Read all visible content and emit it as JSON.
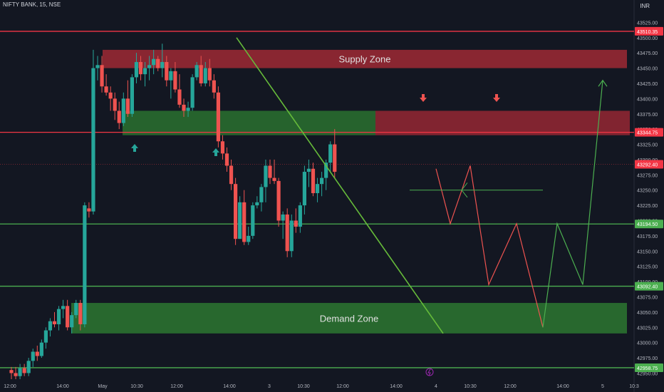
{
  "header": {
    "symbol": "NIFTY BANK, 15, NSE",
    "currency": "INR"
  },
  "colors": {
    "background": "#131722",
    "bull": "#26a69a",
    "bear": "#ef5350",
    "supply": "#a72a36",
    "demand": "#2e7d32",
    "line_green": "#4caf50",
    "line_red": "#f23645",
    "trend": "#66bb3a",
    "text": "#b2b5be"
  },
  "chart_data": {
    "type": "candlestick",
    "title": "NIFTY BANK, 15, NSE",
    "ylim": [
      42940,
      43550
    ],
    "y_ticks": [
      43525,
      43500,
      43475,
      43450,
      43425,
      43400,
      43375,
      43350,
      43325,
      43300,
      43275,
      43250,
      43225,
      43200,
      43175,
      43150,
      43125,
      43100,
      43075,
      43050,
      43025,
      43000,
      42975,
      42950
    ],
    "x_tick_labels": [
      "12:00",
      "14:00",
      "May",
      "10:30",
      "12:00",
      "14:00",
      "3",
      "10:30",
      "12:00",
      "14:00",
      "4",
      "10:30",
      "12:00",
      "14:00",
      "5",
      "10:3"
    ],
    "price_labels": [
      {
        "value": 43510.35,
        "label": "43510.35",
        "color": "#f23645"
      },
      {
        "value": 43344.75,
        "label": "43344.75",
        "color": "#f23645"
      },
      {
        "value": 43292.4,
        "label": "43292.40",
        "color": "#f23645"
      },
      {
        "value": 43194.5,
        "label": "43194.50",
        "color": "#4caf50"
      },
      {
        "value": 43092.4,
        "label": "43092.40",
        "color": "#4caf50"
      },
      {
        "value": 42958.75,
        "label": "42958.75",
        "color": "#4caf50"
      }
    ],
    "zones": [
      {
        "label": "Supply Zone",
        "y_top": 43480,
        "y_bottom": 43450
      },
      {
        "label": "Demand Zone",
        "y_top": 43065,
        "y_bottom": 43015
      }
    ],
    "candles": [
      [
        42955,
        42960,
        42940,
        42950
      ],
      [
        42950,
        42960,
        42940,
        42945
      ],
      [
        42945,
        42965,
        42940,
        42958
      ],
      [
        42958,
        42965,
        42945,
        42950
      ],
      [
        42950,
        42975,
        42945,
        42970
      ],
      [
        42970,
        42990,
        42960,
        42985
      ],
      [
        42985,
        42995,
        42970,
        42978
      ],
      [
        42978,
        43005,
        42975,
        43000
      ],
      [
        43000,
        43025,
        42990,
        43020
      ],
      [
        43020,
        43040,
        43010,
        43035
      ],
      [
        43035,
        43050,
        43025,
        43030
      ],
      [
        43030,
        43060,
        43020,
        43055
      ],
      [
        43055,
        43070,
        43040,
        43060
      ],
      [
        43060,
        43070,
        43020,
        43025
      ],
      [
        43025,
        43050,
        43015,
        43045
      ],
      [
        43045,
        43070,
        43040,
        43065
      ],
      [
        43065,
        43070,
        43020,
        43030
      ],
      [
        43030,
        43230,
        43025,
        43225
      ],
      [
        43220,
        43230,
        43205,
        43215
      ],
      [
        43215,
        43480,
        43210,
        43450
      ],
      [
        43450,
        43470,
        43430,
        43455
      ],
      [
        43455,
        43470,
        43410,
        43420
      ],
      [
        43420,
        43440,
        43405,
        43410
      ],
      [
        43410,
        43420,
        43380,
        43400
      ],
      [
        43400,
        43410,
        43365,
        43380
      ],
      [
        43380,
        43395,
        43350,
        43360
      ],
      [
        43360,
        43410,
        43355,
        43400
      ],
      [
        43400,
        43430,
        43370,
        43375
      ],
      [
        43375,
        43440,
        43370,
        43435
      ],
      [
        43435,
        43475,
        43425,
        43460
      ],
      [
        43460,
        43470,
        43430,
        43440
      ],
      [
        43440,
        43460,
        43420,
        43450
      ],
      [
        43450,
        43470,
        43430,
        43455
      ],
      [
        43455,
        43480,
        43440,
        43465
      ],
      [
        43465,
        43470,
        43445,
        43450
      ],
      [
        43450,
        43490,
        43435,
        43460
      ],
      [
        43460,
        43470,
        43420,
        43430
      ],
      [
        43430,
        43450,
        43400,
        43445
      ],
      [
        43445,
        43460,
        43410,
        43415
      ],
      [
        43415,
        43440,
        43385,
        43390
      ],
      [
        43390,
        43400,
        43370,
        43380
      ],
      [
        43380,
        43395,
        43370,
        43385
      ],
      [
        43385,
        43440,
        43380,
        43435
      ],
      [
        43435,
        43460,
        43430,
        43455
      ],
      [
        43455,
        43470,
        43420,
        43425
      ],
      [
        43425,
        43460,
        43420,
        43450
      ],
      [
        43450,
        43465,
        43420,
        43430
      ],
      [
        43430,
        43440,
        43400,
        43410
      ],
      [
        43410,
        43420,
        43320,
        43330
      ],
      [
        43330,
        43340,
        43300,
        43310
      ],
      [
        43310,
        43320,
        43280,
        43290
      ],
      [
        43290,
        43300,
        43250,
        43260
      ],
      [
        43260,
        43270,
        43160,
        43170
      ],
      [
        43170,
        43240,
        43170,
        43230
      ],
      [
        43230,
        43250,
        43160,
        43165
      ],
      [
        43165,
        43190,
        43160,
        43175
      ],
      [
        43175,
        43230,
        43170,
        43225
      ],
      [
        43225,
        43240,
        43220,
        43230
      ],
      [
        43230,
        43260,
        43215,
        43255
      ],
      [
        43255,
        43300,
        43230,
        43290
      ],
      [
        43290,
        43300,
        43260,
        43270
      ],
      [
        43270,
        43300,
        43260,
        43265
      ],
      [
        43265,
        43270,
        43190,
        43200
      ],
      [
        43200,
        43215,
        43170,
        43210
      ],
      [
        43210,
        43220,
        43140,
        43150
      ],
      [
        43150,
        43210,
        43140,
        43200
      ],
      [
        43200,
        43220,
        43180,
        43190
      ],
      [
        43190,
        43230,
        43180,
        43225
      ],
      [
        43225,
        43290,
        43210,
        43280
      ],
      [
        43280,
        43300,
        43255,
        43285
      ],
      [
        43285,
        43295,
        43240,
        43245
      ],
      [
        43245,
        43270,
        43230,
        43260
      ],
      [
        43260,
        43280,
        43240,
        43270
      ],
      [
        43270,
        43300,
        43250,
        43295
      ],
      [
        43295,
        43330,
        43280,
        43325
      ],
      [
        43325,
        43350,
        43270,
        43280
      ]
    ],
    "projection_red": [
      [
        43280,
        43275
      ],
      [
        43240,
        43195
      ],
      [
        43290,
        43255
      ],
      [
        43195,
        43095
      ],
      [
        43195,
        43025
      ]
    ],
    "projection_green": [
      [
        43195,
        43095
      ],
      [
        43430,
        43350
      ]
    ],
    "horizontal_lines": [
      {
        "value": 43510.35,
        "color": "#f23645"
      },
      {
        "value": 43344.75,
        "color": "#f23645"
      },
      {
        "value": 43194.5,
        "color": "#4caf50"
      },
      {
        "value": 43092.4,
        "color": "#4caf50"
      },
      {
        "value": 42958.75,
        "color": "#4caf50"
      }
    ]
  }
}
